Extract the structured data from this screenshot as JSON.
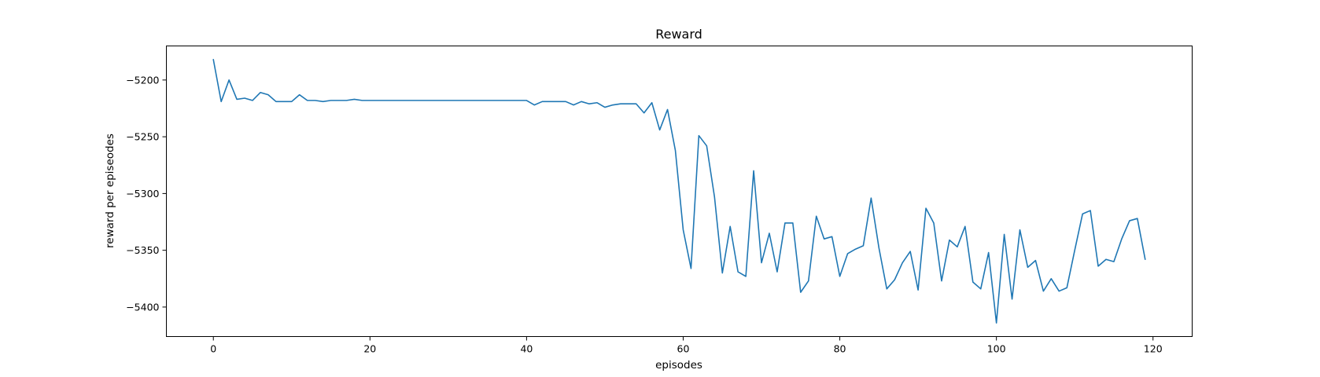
{
  "chart_data": {
    "type": "line",
    "title": "Reward",
    "xlabel": "episodes",
    "ylabel": "reward per episeodes",
    "xlim": [
      -6,
      125
    ],
    "ylim": [
      -5426,
      -5170
    ],
    "xticks": [
      0,
      20,
      40,
      60,
      80,
      100,
      120
    ],
    "yticks": [
      -5400,
      -5350,
      -5300,
      -5250,
      -5200
    ],
    "grid": false,
    "legend": "none",
    "series": [
      {
        "color": "#1f77b4",
        "x": [
          0,
          1,
          2,
          3,
          4,
          5,
          6,
          7,
          8,
          9,
          10,
          11,
          12,
          13,
          14,
          15,
          16,
          17,
          18,
          19,
          20,
          21,
          22,
          23,
          24,
          25,
          26,
          27,
          28,
          29,
          30,
          31,
          32,
          33,
          34,
          35,
          36,
          37,
          38,
          39,
          40,
          41,
          42,
          43,
          44,
          45,
          46,
          47,
          48,
          49,
          50,
          51,
          52,
          53,
          54,
          55,
          56,
          57,
          58,
          59,
          60,
          61,
          62,
          63,
          64,
          65,
          66,
          67,
          68,
          69,
          70,
          71,
          72,
          73,
          74,
          75,
          76,
          77,
          78,
          79,
          80,
          81,
          82,
          83,
          84,
          85,
          86,
          87,
          88,
          89,
          90,
          91,
          92,
          93,
          94,
          95,
          96,
          97,
          98,
          99,
          100,
          101,
          102,
          103,
          104,
          105,
          106,
          107,
          108,
          109,
          110,
          111,
          112,
          113,
          114,
          115,
          116,
          117,
          118,
          119
        ],
        "y": [
          -5182,
          -5219,
          -5200,
          -5217,
          -5216,
          -5218,
          -5211,
          -5213,
          -5219,
          -5219,
          -5219,
          -5213,
          -5218,
          -5218,
          -5219,
          -5218,
          -5218,
          -5218,
          -5217,
          -5218,
          -5218,
          -5218,
          -5218,
          -5218,
          -5218,
          -5218,
          -5218,
          -5218,
          -5218,
          -5218,
          -5218,
          -5218,
          -5218,
          -5218,
          -5218,
          -5218,
          -5218,
          -5218,
          -5218,
          -5218,
          -5218,
          -5222,
          -5219,
          -5219,
          -5219,
          -5219,
          -5222,
          -5219,
          -5221,
          -5220,
          -5224,
          -5222,
          -5221,
          -5221,
          -5221,
          -5229,
          -5220,
          -5244,
          -5226,
          -5262,
          -5332,
          -5366,
          -5249,
          -5258,
          -5303,
          -5370,
          -5329,
          -5369,
          -5373,
          -5280,
          -5361,
          -5335,
          -5369,
          -5326,
          -5326,
          -5387,
          -5377,
          -5320,
          -5340,
          -5338,
          -5373,
          -5353,
          -5349,
          -5346,
          -5304,
          -5348,
          -5384,
          -5376,
          -5361,
          -5351,
          -5385,
          -5313,
          -5326,
          -5377,
          -5341,
          -5347,
          -5329,
          -5378,
          -5384,
          -5352,
          -5414,
          -5336,
          -5393,
          -5332,
          -5365,
          -5359,
          -5386,
          -5375,
          -5386,
          -5383,
          -5350,
          -5318,
          -5315,
          -5364,
          -5358,
          -5360,
          -5340,
          -5324,
          -5322,
          -5358
        ]
      }
    ]
  }
}
